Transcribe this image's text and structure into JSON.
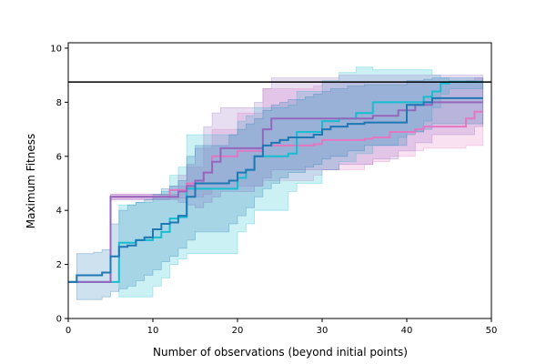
{
  "chart_data": {
    "type": "line",
    "title": "",
    "xlabel": "Number of observations (beyond initial points)",
    "ylabel": "Maximum Fitness",
    "xlim": [
      0,
      50
    ],
    "ylim": [
      0,
      10.2
    ],
    "xticks": [
      "0",
      "10",
      "20",
      "30",
      "40",
      "50"
    ],
    "yticks": [
      "0",
      "2",
      "4",
      "6",
      "8",
      "10"
    ],
    "grid": false,
    "legend": "none",
    "reference_line": {
      "y": 8.75,
      "color": "#000000"
    },
    "series": [
      {
        "color": "#e377c2",
        "x": [
          0,
          4,
          5,
          11,
          12,
          14,
          16,
          17,
          20,
          23,
          29,
          30,
          35,
          36,
          38,
          41,
          42,
          47,
          48,
          49
        ],
        "y": [
          1.35,
          1.35,
          4.5,
          4.5,
          4.75,
          5.0,
          5.4,
          6.0,
          6.2,
          6.4,
          6.45,
          6.6,
          6.65,
          6.7,
          6.9,
          7.0,
          7.1,
          7.4,
          7.65,
          7.65
        ],
        "lower": [
          1.35,
          1.35,
          4.4,
          4.4,
          4.45,
          4.5,
          4.6,
          4.8,
          4.9,
          5.1,
          5.3,
          5.5,
          5.7,
          5.8,
          6.0,
          6.2,
          6.3,
          6.4,
          6.4,
          6.4
        ],
        "upper": [
          1.35,
          1.35,
          4.6,
          4.6,
          4.9,
          5.6,
          6.3,
          7.0,
          7.6,
          8.5,
          8.6,
          8.7,
          8.75,
          8.75,
          8.75,
          8.75,
          8.75,
          8.8,
          8.9,
          8.9
        ]
      },
      {
        "color": "#17becf",
        "x": [
          0,
          5,
          6,
          8,
          10,
          11,
          12,
          13,
          14,
          20,
          21,
          22,
          26,
          27,
          30,
          32,
          34,
          36,
          39,
          40,
          42,
          43,
          44,
          45,
          49
        ],
        "y": [
          1.35,
          1.35,
          2.8,
          2.9,
          3.0,
          3.2,
          3.7,
          3.75,
          4.8,
          5.2,
          5.5,
          6.0,
          6.1,
          6.9,
          7.3,
          7.4,
          7.6,
          8.0,
          8.0,
          8.0,
          8.2,
          8.4,
          8.7,
          8.75,
          8.75
        ],
        "lower": [
          1.35,
          1.35,
          0.8,
          0.8,
          1.2,
          1.5,
          2.0,
          2.2,
          2.4,
          3.2,
          3.5,
          4.0,
          4.7,
          5.0,
          5.5,
          5.8,
          6.1,
          6.4,
          6.7,
          6.9,
          7.3,
          7.8,
          8.3,
          8.5,
          8.6
        ],
        "upper": [
          1.35,
          1.35,
          4.2,
          4.3,
          4.5,
          4.7,
          5.3,
          5.6,
          6.8,
          7.3,
          7.5,
          7.8,
          7.9,
          8.4,
          8.8,
          9.1,
          9.3,
          9.2,
          9.2,
          9.2,
          9.2,
          9.0,
          8.9,
          8.8,
          8.8
        ]
      },
      {
        "color": "#9467bd",
        "x": [
          0,
          4,
          5,
          11,
          13,
          14,
          15,
          16,
          17,
          18,
          22,
          23,
          24,
          32,
          36,
          39,
          41,
          43,
          48,
          49
        ],
        "y": [
          1.35,
          1.35,
          4.5,
          4.5,
          4.7,
          4.9,
          5.1,
          5.4,
          5.8,
          6.3,
          6.3,
          7.0,
          7.4,
          7.4,
          7.5,
          7.7,
          7.9,
          8.0,
          8.0,
          8.0
        ],
        "lower": [
          1.35,
          1.35,
          4.4,
          4.4,
          4.3,
          4.2,
          4.1,
          4.3,
          4.5,
          4.7,
          4.9,
          5.2,
          5.5,
          5.7,
          5.9,
          6.2,
          6.5,
          6.8,
          7.1,
          7.1
        ],
        "upper": [
          1.35,
          1.35,
          4.6,
          4.6,
          5.3,
          5.7,
          6.3,
          7.1,
          7.6,
          7.8,
          8.0,
          8.5,
          8.9,
          9.0,
          9.0,
          9.0,
          9.0,
          9.0,
          9.0,
          9.0
        ]
      },
      {
        "color": "#1f77b4",
        "x": [
          0,
          1,
          3,
          4,
          5,
          6,
          7,
          8,
          9,
          10,
          11,
          12,
          13,
          14,
          15,
          19,
          20,
          21,
          22,
          23,
          24,
          25,
          26,
          28,
          29,
          30,
          31,
          33,
          35,
          40,
          41,
          42,
          43,
          49
        ],
        "y": [
          1.35,
          1.6,
          1.6,
          1.7,
          2.3,
          2.65,
          2.7,
          2.9,
          3.0,
          3.3,
          3.5,
          3.55,
          3.8,
          4.5,
          5.0,
          5.1,
          5.4,
          5.5,
          6.0,
          6.4,
          6.5,
          6.6,
          6.7,
          6.7,
          6.8,
          7.0,
          7.1,
          7.2,
          7.25,
          7.9,
          7.9,
          8.0,
          8.15,
          8.15
        ],
        "lower": [
          1.35,
          0.7,
          0.7,
          0.8,
          1.0,
          1.1,
          1.2,
          1.4,
          1.6,
          1.8,
          2.1,
          2.3,
          2.6,
          2.9,
          3.2,
          3.5,
          3.8,
          4.1,
          4.5,
          4.8,
          5.0,
          5.2,
          5.4,
          5.6,
          5.7,
          5.9,
          6.0,
          6.2,
          6.4,
          6.8,
          6.9,
          7.0,
          7.2,
          7.3
        ],
        "upper": [
          1.35,
          2.4,
          2.45,
          2.55,
          3.5,
          4.0,
          4.2,
          4.3,
          4.4,
          4.6,
          4.8,
          4.9,
          5.1,
          6.0,
          6.4,
          6.8,
          7.0,
          7.2,
          7.4,
          7.7,
          7.9,
          8.0,
          8.1,
          8.2,
          8.3,
          8.4,
          8.5,
          8.6,
          8.65,
          8.8,
          8.8,
          8.85,
          8.9,
          8.9
        ]
      }
    ]
  }
}
